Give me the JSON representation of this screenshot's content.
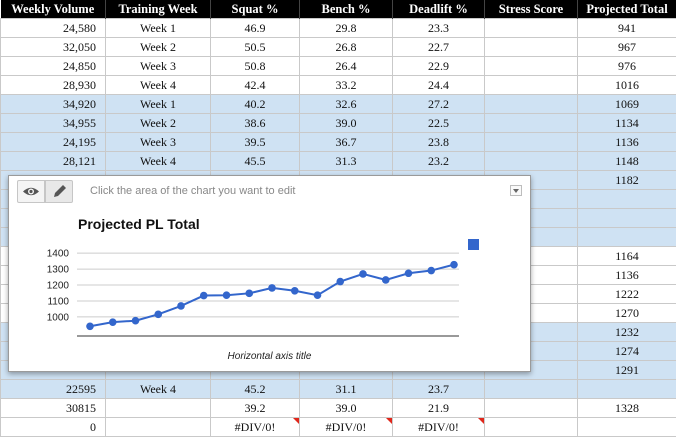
{
  "sheet": {
    "headers": [
      "Weekly Volume",
      "Training Week",
      "Squat %",
      "Bench %",
      "Deadlift %",
      "Stress Score",
      "Projected Total"
    ],
    "rows": [
      {
        "band": "white",
        "cells": [
          "24,580",
          "Week 1",
          "46.9",
          "29.8",
          "23.3",
          "",
          "941"
        ]
      },
      {
        "band": "white",
        "cells": [
          "32,050",
          "Week 2",
          "50.5",
          "26.8",
          "22.7",
          "",
          "967"
        ]
      },
      {
        "band": "white",
        "cells": [
          "24,850",
          "Week 3",
          "50.8",
          "26.4",
          "22.9",
          "",
          "976"
        ]
      },
      {
        "band": "white",
        "cells": [
          "28,930",
          "Week 4",
          "42.4",
          "33.2",
          "24.4",
          "",
          "1016"
        ]
      },
      {
        "band": "blue",
        "cells": [
          "34,920",
          "Week 1",
          "40.2",
          "32.6",
          "27.2",
          "",
          "1069"
        ]
      },
      {
        "band": "blue",
        "cells": [
          "34,955",
          "Week 2",
          "38.6",
          "39.0",
          "22.5",
          "",
          "1134"
        ]
      },
      {
        "band": "blue",
        "cells": [
          "24,195",
          "Week 3",
          "39.5",
          "36.7",
          "23.8",
          "",
          "1136"
        ]
      },
      {
        "band": "blue",
        "cells": [
          "28,121",
          "Week 4",
          "45.5",
          "31.3",
          "23.2",
          "",
          "1148"
        ]
      },
      {
        "band": "blue",
        "cells": [
          "",
          "",
          "",
          "",
          "",
          "",
          "1182"
        ]
      },
      {
        "band": "blue",
        "cells": [
          "",
          "",
          "",
          "",
          "",
          "",
          ""
        ]
      },
      {
        "band": "blue",
        "cells": [
          "",
          "",
          "",
          "",
          "",
          "",
          ""
        ]
      },
      {
        "band": "blue",
        "cells": [
          "",
          "",
          "",
          "",
          "",
          "",
          ""
        ]
      },
      {
        "band": "white",
        "cells": [
          "",
          "",
          "",
          "",
          "",
          "",
          "1164"
        ]
      },
      {
        "band": "white",
        "cells": [
          "",
          "",
          "",
          "",
          "",
          "",
          "1136"
        ]
      },
      {
        "band": "white",
        "cells": [
          "",
          "",
          "",
          "",
          "",
          "",
          "1222"
        ]
      },
      {
        "band": "white",
        "cells": [
          "",
          "",
          "",
          "",
          "",
          "",
          "1270"
        ]
      },
      {
        "band": "blue",
        "cells": [
          "",
          "",
          "",
          "",
          "",
          "",
          "1232"
        ]
      },
      {
        "band": "blue",
        "cells": [
          "",
          "",
          "",
          "",
          "",
          "",
          "1274"
        ]
      },
      {
        "band": "blue",
        "cells": [
          "",
          "",
          "",
          "",
          "",
          "",
          "1291"
        ]
      },
      {
        "band": "blue",
        "cells": [
          "22595",
          "Week 4",
          "45.2",
          "31.1",
          "23.7",
          "",
          ""
        ]
      },
      {
        "band": "white",
        "cells": [
          "30815",
          "",
          "39.2",
          "39.0",
          "21.9",
          "",
          "1328"
        ]
      },
      {
        "band": "white",
        "cells": [
          "0",
          "",
          "#DIV/0!",
          "#DIV/0!",
          "#DIV/0!",
          "",
          ""
        ]
      }
    ]
  },
  "editor": {
    "hint": "Click the area of the chart you want to edit",
    "icons": [
      "eye-icon",
      "pencil-icon",
      "chevron-down-icon"
    ],
    "accent": "#3366cc"
  },
  "chart_data": {
    "type": "line",
    "title": "Projected PL Total",
    "xlabel": "Horizontal axis title",
    "ylabel": "",
    "y_ticks": [
      1000,
      1100,
      1200,
      1300,
      1400
    ],
    "ylim": [
      880,
      1420
    ],
    "grid": true,
    "legend": "right",
    "series": [
      {
        "values": [
          941,
          967,
          976,
          1016,
          1069,
          1134,
          1136,
          1148,
          1182,
          1164,
          1136,
          1222,
          1270,
          1232,
          1274,
          1291,
          1328
        ]
      }
    ]
  }
}
